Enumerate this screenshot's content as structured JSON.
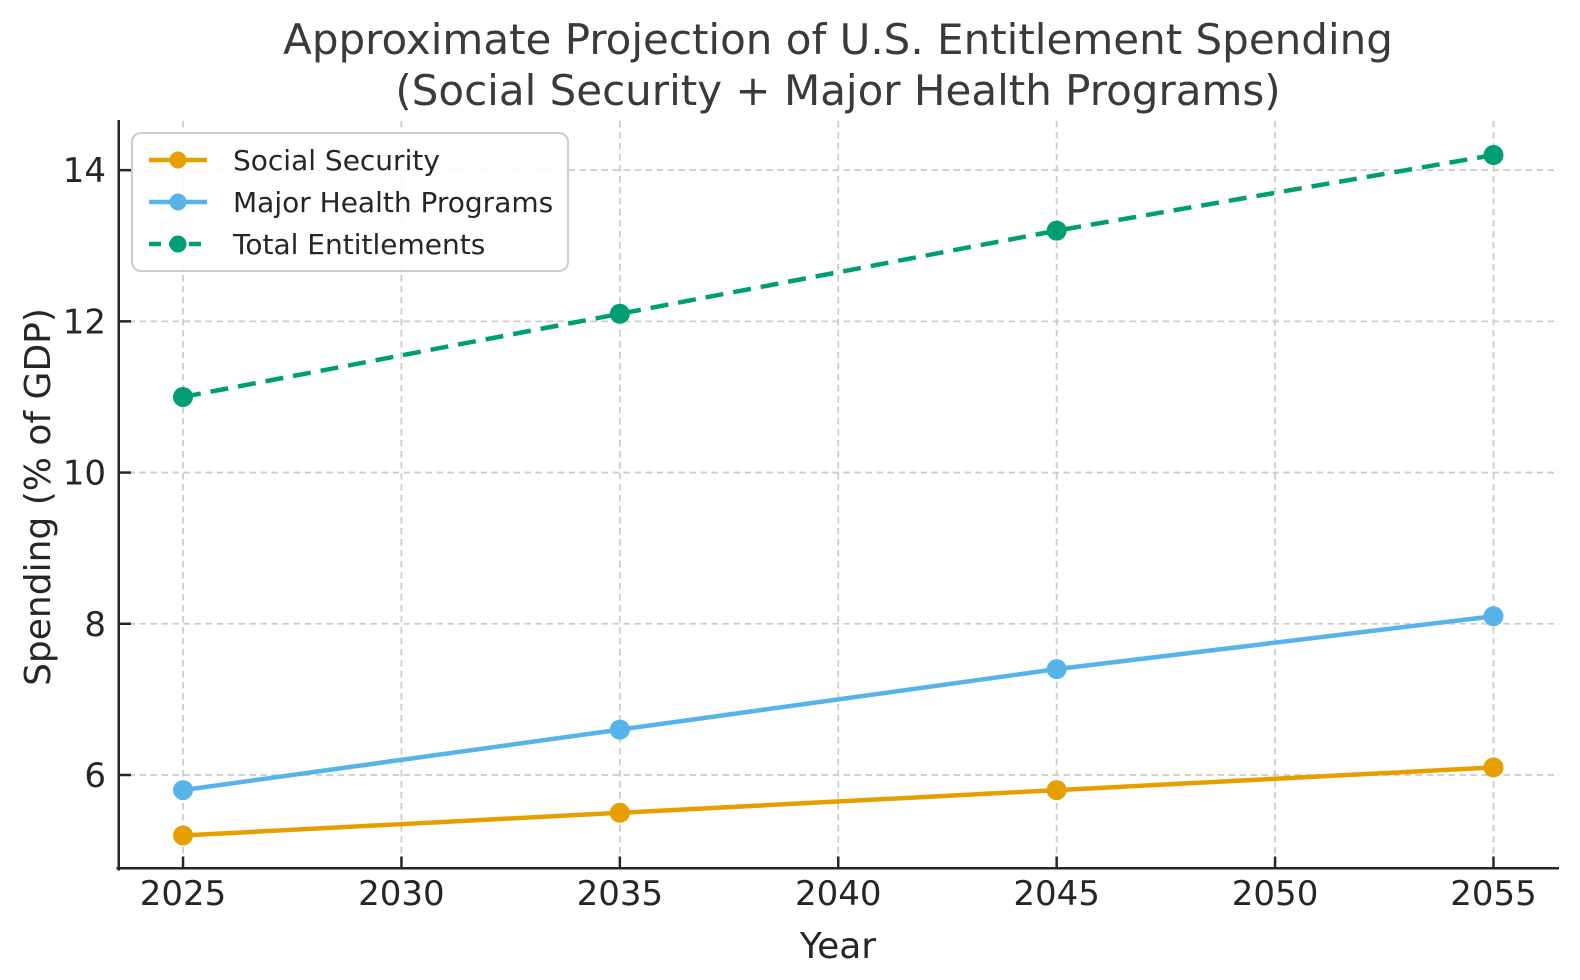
{
  "chart_data": {
    "type": "line",
    "title_line1": "Approximate Projection of U.S. Entitlement Spending",
    "title_line2": "(Social Security + Major Health Programs)",
    "xlabel": "Year",
    "ylabel": "Spending (% of GDP)",
    "x": [
      2025,
      2035,
      2045,
      2055
    ],
    "x_ticks": [
      2025,
      2030,
      2035,
      2040,
      2045,
      2050,
      2055
    ],
    "y_ticks": [
      6,
      8,
      10,
      12,
      14
    ],
    "xlim": [
      2023.5,
      2056.5
    ],
    "ylim": [
      4.75,
      14.65
    ],
    "grid": true,
    "grid_style": "dashed",
    "legend_position": "upper-left",
    "series": [
      {
        "name": "Social Security",
        "values": [
          5.2,
          5.5,
          5.8,
          6.1
        ],
        "color": "#E69F00",
        "line_style": "solid",
        "marker": "circle"
      },
      {
        "name": "Major Health Programs",
        "values": [
          5.8,
          6.6,
          7.4,
          8.1
        ],
        "color": "#56B4E9",
        "line_style": "solid",
        "marker": "circle"
      },
      {
        "name": "Total Entitlements",
        "values": [
          11.0,
          12.1,
          13.2,
          14.2
        ],
        "color": "#009E73",
        "line_style": "dashed",
        "marker": "circle"
      }
    ],
    "colors": {
      "background": "#ffffff",
      "grid": "#cccccc",
      "spine": "#262626",
      "tick_label": "#262626",
      "title": "#3a3a3a",
      "legend_border": "#cccccc"
    }
  }
}
